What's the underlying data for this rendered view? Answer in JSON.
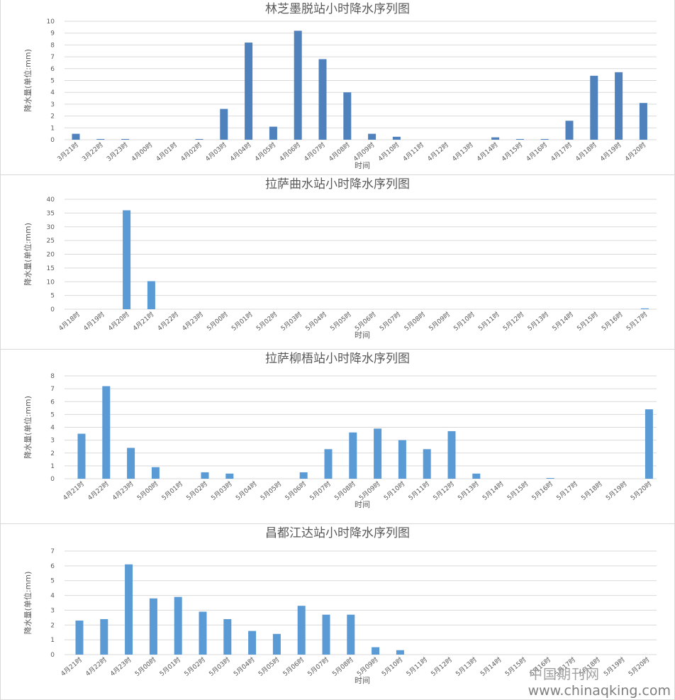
{
  "chart_data": [
    {
      "type": "bar",
      "title": "林芝墨脱站小时降水序列图",
      "xlabel": "时间",
      "ylabel": "降水量(单位:mm)",
      "ylim": [
        0,
        10
      ],
      "yticks": [
        0,
        1,
        2,
        3,
        4,
        5,
        6,
        7,
        8,
        9,
        10
      ],
      "grid": true,
      "color": "#4f81bd",
      "categories": [
        "3月21时",
        "3月22时",
        "3月23时",
        "4月00时",
        "4月01时",
        "4月02时",
        "4月03时",
        "4月04时",
        "4月05时",
        "4月06时",
        "4月07时",
        "4月08时",
        "4月09时",
        "4月10时",
        "4月11时",
        "4月12时",
        "4月13时",
        "4月14时",
        "4月15时",
        "4月16时",
        "4月17时",
        "4月18时",
        "4月19时",
        "4月20时"
      ],
      "values": [
        0.5,
        0.05,
        0.05,
        0,
        0,
        0.05,
        2.6,
        8.2,
        1.1,
        9.2,
        6.8,
        4.0,
        0.5,
        0.25,
        0,
        0,
        0,
        0.2,
        0.05,
        0.05,
        1.6,
        5.4,
        5.7,
        3.1
      ]
    },
    {
      "type": "bar",
      "title": "拉萨曲水站小时降水序列图",
      "xlabel": "时间",
      "ylabel": "降水量(单位:mm)",
      "ylim": [
        0,
        40
      ],
      "yticks": [
        0,
        5,
        10,
        15,
        20,
        25,
        30,
        35,
        40
      ],
      "grid": true,
      "color": "#5b9bd5",
      "categories": [
        "4月18时",
        "4月19时",
        "4月20时",
        "4月21时",
        "4月22时",
        "4月23时",
        "5月00时",
        "5月01时",
        "5月02时",
        "5月03时",
        "5月04时",
        "5月05时",
        "5月06时",
        "5月07时",
        "5月08时",
        "5月09时",
        "5月10时",
        "5月11时",
        "5月12时",
        "5月13时",
        "5月14时",
        "5月15时",
        "5月16时",
        "5月17时"
      ],
      "values": [
        0,
        0,
        36,
        10.2,
        0,
        0,
        0,
        0,
        0,
        0,
        0,
        0,
        0,
        0,
        0,
        0,
        0,
        0,
        0,
        0,
        0,
        0,
        0,
        0.3
      ]
    },
    {
      "type": "bar",
      "title": "拉萨柳梧站小时降水序列图",
      "xlabel": "时间",
      "ylabel": "降水量(单位:mm)",
      "ylim": [
        0,
        8
      ],
      "yticks": [
        0,
        1,
        2,
        3,
        4,
        5,
        6,
        7,
        8
      ],
      "grid": true,
      "color": "#5b9bd5",
      "categories": [
        "4月21时",
        "4月22时",
        "4月23时",
        "5月00时",
        "5月01时",
        "5月02时",
        "5月03时",
        "5月04时",
        "5月05时",
        "5月06时",
        "5月07时",
        "5月08时",
        "5月09时",
        "5月10时",
        "5月11时",
        "5月12时",
        "5月13时",
        "5月14时",
        "5月15时",
        "5月16时",
        "5月17时",
        "5月18时",
        "5月19时",
        "5月20时"
      ],
      "values": [
        3.5,
        7.2,
        2.4,
        0.9,
        0,
        0.5,
        0.4,
        0,
        0,
        0.5,
        2.3,
        3.6,
        3.9,
        3.0,
        2.3,
        3.7,
        0.4,
        0,
        0,
        0.05,
        0,
        0,
        0,
        5.4
      ]
    },
    {
      "type": "bar",
      "title": "昌都江达站小时降水序列图",
      "xlabel": "时间",
      "ylabel": "降水量(单位:mm)",
      "ylim": [
        0,
        7
      ],
      "yticks": [
        0,
        1,
        2,
        3,
        4,
        5,
        6,
        7
      ],
      "grid": true,
      "color": "#5b9bd5",
      "categories": [
        "4月21时",
        "4月22时",
        "4月23时",
        "5月00时",
        "5月01时",
        "5月02时",
        "5月03时",
        "5月04时",
        "5月05时",
        "5月06时",
        "5月07时",
        "5月08时",
        "5月09时",
        "5月10时",
        "5月11时",
        "5月12时",
        "5月13时",
        "5月14时",
        "5月15时",
        "5月16时",
        "5月17时",
        "5月18时",
        "5月19时",
        "5月20时"
      ],
      "values": [
        2.3,
        2.4,
        6.1,
        3.8,
        3.9,
        2.9,
        2.4,
        1.6,
        1.4,
        3.3,
        2.7,
        2.7,
        0.5,
        0.3,
        0,
        0,
        0,
        0,
        0,
        0,
        0,
        0,
        0,
        0
      ]
    }
  ],
  "watermark": {
    "name": "中国期刊网",
    "url": "www.chinaqking.com"
  }
}
